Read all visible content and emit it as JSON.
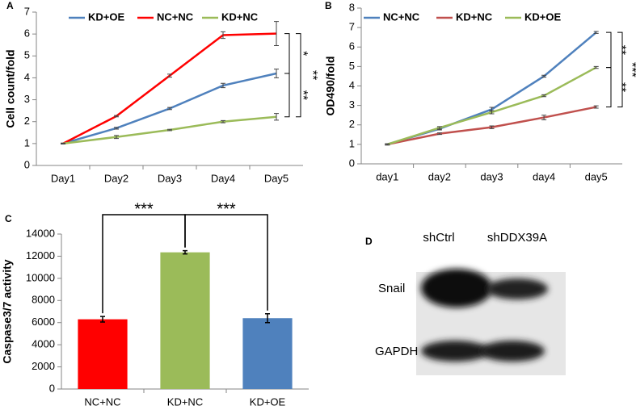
{
  "chart_data": [
    {
      "type": "line",
      "label": "A",
      "y_label": "Cell count/fold",
      "categories": [
        "Day1",
        "Day2",
        "Day3",
        "Day4",
        "Day5"
      ],
      "ylim": [
        0,
        7
      ],
      "yticks": [
        0,
        1,
        2,
        3,
        4,
        5,
        6,
        7
      ],
      "series": [
        {
          "name": "KD+OE",
          "color": "#4f81bd",
          "values": [
            1,
            1.7,
            2.6,
            3.65,
            4.2
          ],
          "errors": [
            0.02,
            0.04,
            0.05,
            0.1,
            0.2
          ]
        },
        {
          "name": "NC+NC",
          "color": "#ff0000",
          "values": [
            1,
            2.25,
            4.1,
            5.95,
            6.02
          ],
          "errors": [
            0.02,
            0.03,
            0.07,
            0.15,
            0.55
          ]
        },
        {
          "name": "KD+NC",
          "color": "#9bbb59",
          "values": [
            1,
            1.3,
            1.62,
            2.0,
            2.22
          ],
          "errors": [
            0.02,
            0.07,
            0.03,
            0.05,
            0.15
          ]
        }
      ],
      "annotations": [
        "*",
        "**",
        "**"
      ]
    },
    {
      "type": "line",
      "label": "B",
      "y_label": "OD490/fold",
      "categories": [
        "day1",
        "day2",
        "day3",
        "day4",
        "day5"
      ],
      "ylim": [
        0,
        8
      ],
      "yticks": [
        0,
        1,
        2,
        3,
        4,
        5,
        6,
        7,
        8
      ],
      "series": [
        {
          "name": "NC+NC",
          "color": "#4f81bd",
          "values": [
            1,
            1.8,
            2.8,
            4.5,
            6.75
          ],
          "errors": [
            0.03,
            0.06,
            0.1,
            0.05,
            0.05
          ]
        },
        {
          "name": "KD+NC",
          "color": "#c0504d",
          "values": [
            1,
            1.55,
            1.88,
            2.38,
            2.92
          ],
          "errors": [
            0.03,
            0.04,
            0.07,
            0.12,
            0.06
          ]
        },
        {
          "name": "KD+OE",
          "color": "#9bbb59",
          "values": [
            1,
            1.85,
            2.65,
            3.5,
            4.95
          ],
          "errors": [
            0.03,
            0.06,
            0.08,
            0.05,
            0.05
          ]
        }
      ],
      "annotations": [
        "**",
        "**",
        "***"
      ]
    },
    {
      "type": "bar",
      "label": "C",
      "y_label": "Caspase3/7 activity",
      "categories": [
        "NC+NC",
        "KD+NC",
        "KD+OE"
      ],
      "values": [
        6300,
        12350,
        6400
      ],
      "errors": [
        250,
        150,
        400
      ],
      "colors": [
        "#ff0000",
        "#9bbb59",
        "#4f81bd"
      ],
      "ylim": [
        0,
        14000
      ],
      "yticks": [
        0,
        2000,
        4000,
        6000,
        8000,
        10000,
        12000,
        14000
      ],
      "annotations": [
        "***",
        "***"
      ]
    }
  ],
  "blot": {
    "label": "D",
    "lanes": [
      "shCtrl",
      "shDDX39A"
    ],
    "rows": [
      "Snail",
      "GAPDH"
    ]
  }
}
